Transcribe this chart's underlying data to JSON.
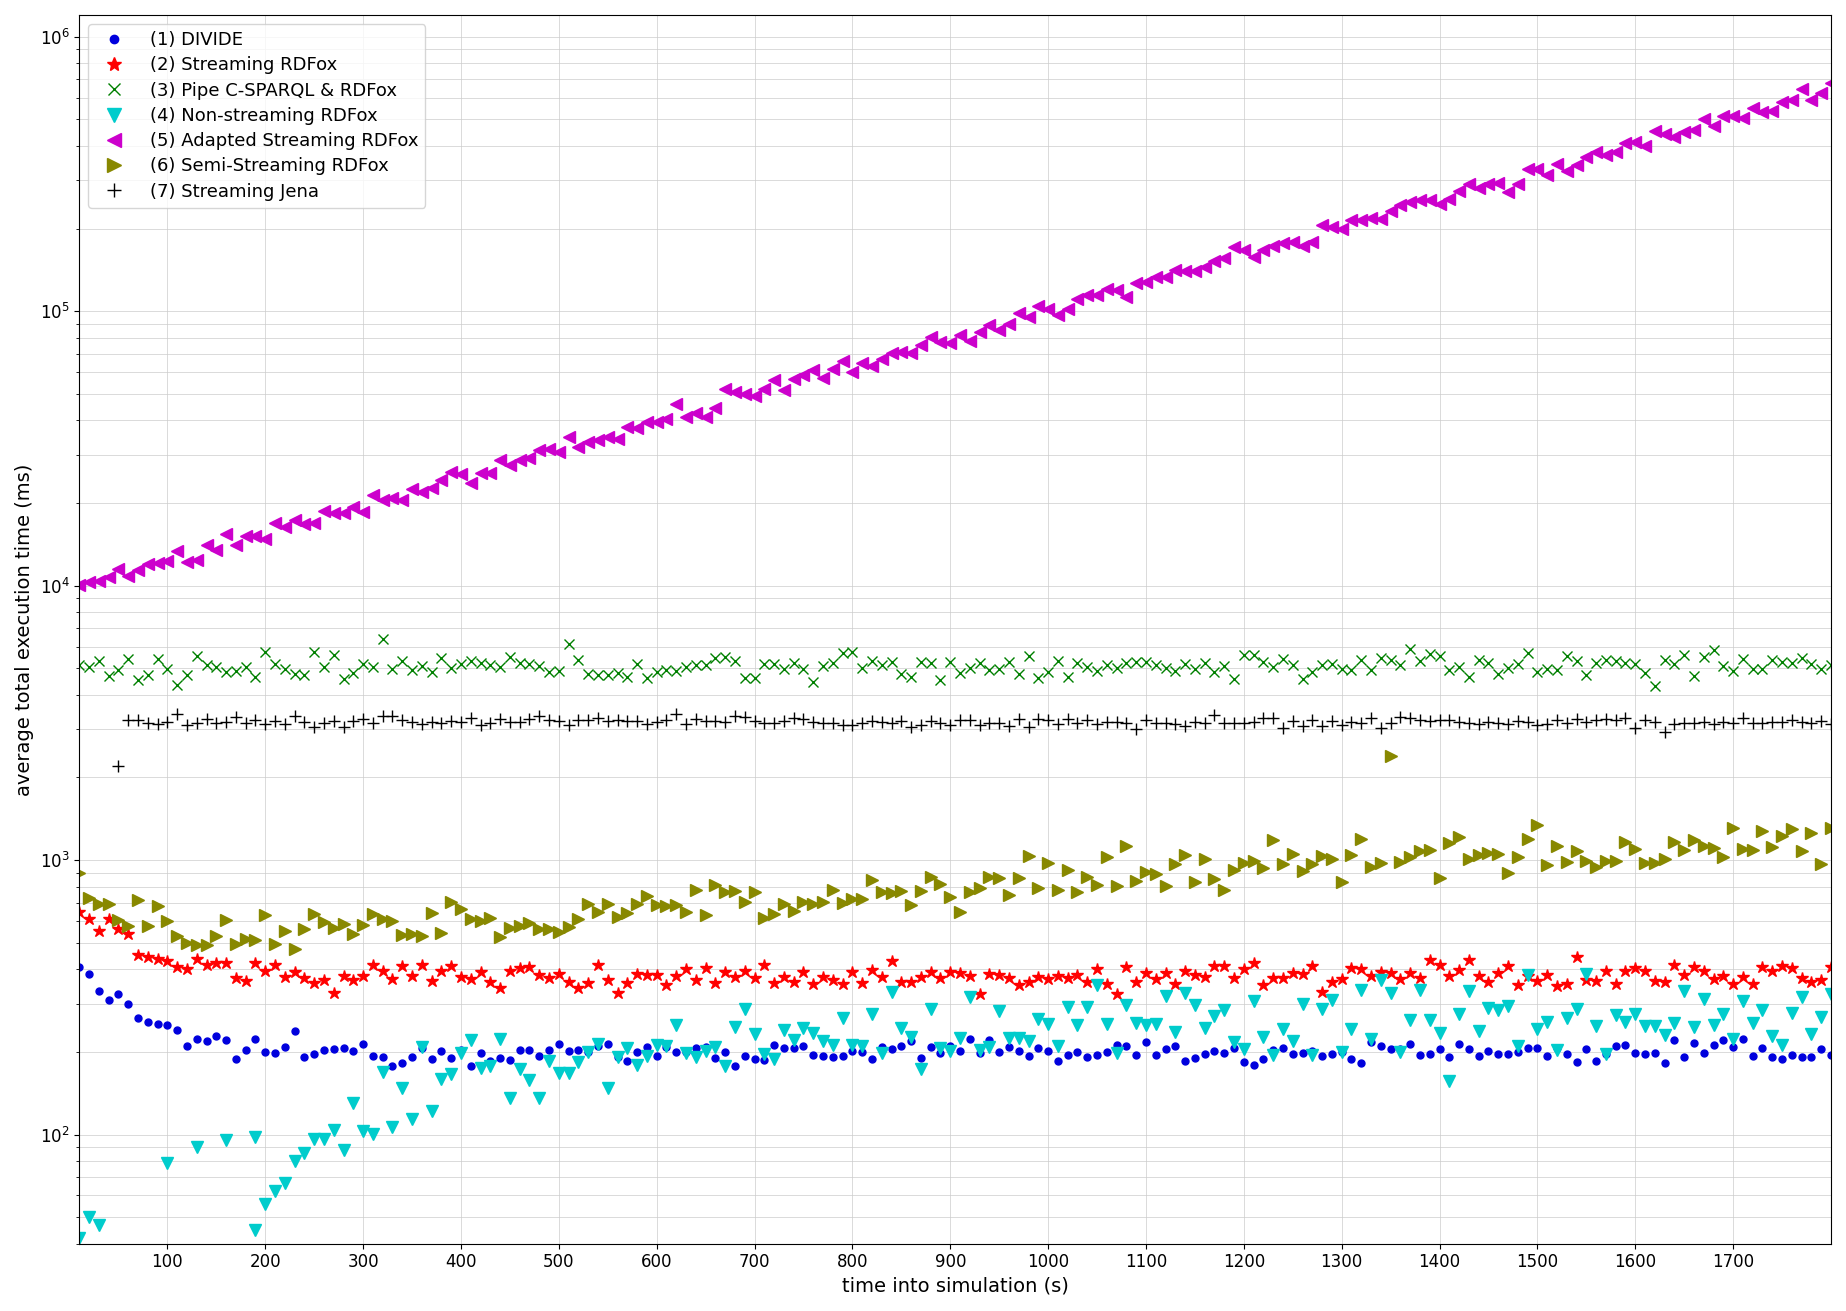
{
  "xlabel": "time into simulation (s)",
  "ylabel": "average total execution time (ms)",
  "series": [
    {
      "label": "(1) DIVIDE",
      "color": "#0000dd",
      "marker": "o",
      "ms": 5
    },
    {
      "label": "(2) Streaming RDFox",
      "color": "#ff0000",
      "marker": "*",
      "ms": 9
    },
    {
      "label": "(3) Pipe C-SPARQL & RDFox",
      "color": "#008000",
      "marker": "x",
      "ms": 7
    },
    {
      "label": "(4) Non-streaming RDFox",
      "color": "#00cccc",
      "marker": "v",
      "ms": 8
    },
    {
      "label": "(5) Adapted Streaming RDFox",
      "color": "#cc00cc",
      "marker": "<",
      "ms": 8
    },
    {
      "label": "(6) Semi-Streaming RDFox",
      "color": "#888800",
      "marker": ">",
      "ms": 8
    },
    {
      "label": "(7) Streaming Jena",
      "color": "#000000",
      "marker": "+",
      "ms": 8
    }
  ],
  "xticks": [
    100,
    200,
    300,
    400,
    500,
    600,
    700,
    800,
    900,
    1000,
    1100,
    1200,
    1300,
    1400,
    1500,
    1600,
    1700
  ]
}
